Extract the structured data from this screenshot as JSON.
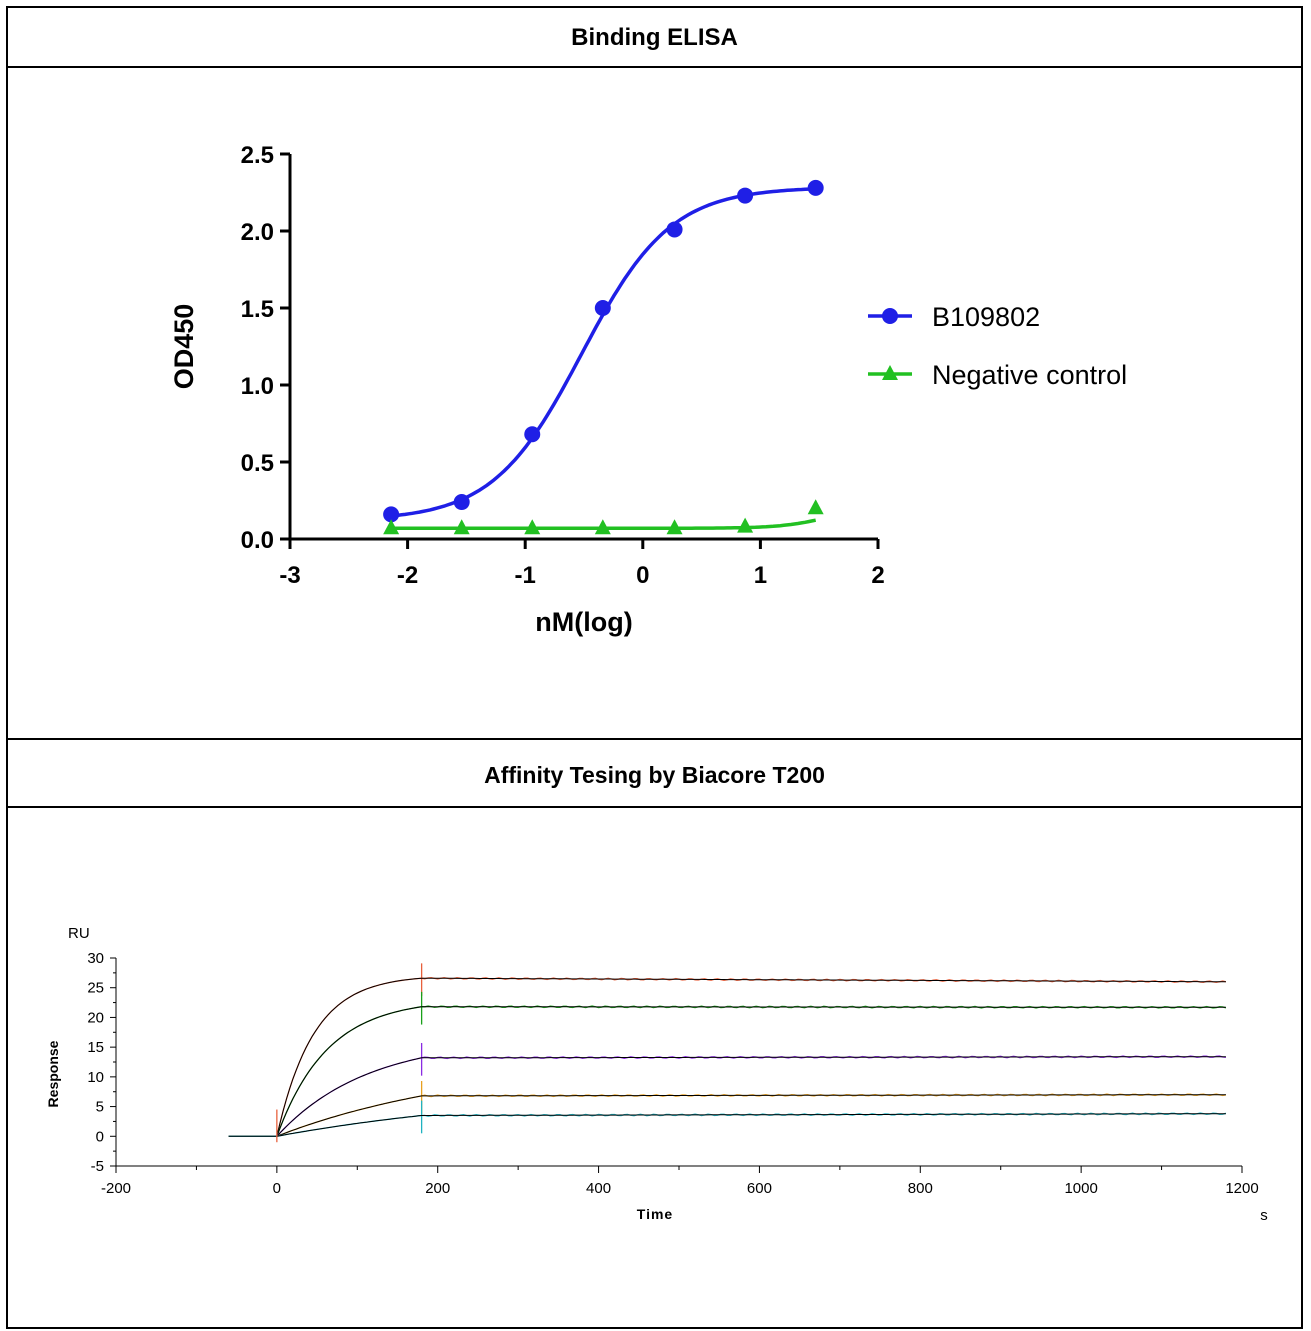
{
  "panels": {
    "top_header": "Binding ELISA",
    "bottom_header": "Affinity Tesing by Biacore T200"
  },
  "chart_data": [
    {
      "type": "scatter",
      "title": "",
      "xlabel": "nM(log)",
      "ylabel": "OD450",
      "xlim": [
        -3,
        2
      ],
      "ylim": [
        0,
        2.5
      ],
      "x_ticks": [
        "-3",
        "-2",
        "-1",
        "0",
        "1",
        "2"
      ],
      "y_ticks": [
        "0.0",
        "0.5",
        "1.0",
        "1.5",
        "2.0",
        "2.5"
      ],
      "legend_position": "right",
      "grid": false,
      "fit": "4-parameter logistic curve",
      "series": [
        {
          "name": "B109802",
          "color": "#1f1fe6",
          "marker": "circle",
          "x": [
            -2.14,
            -1.54,
            -0.94,
            -0.34,
            0.27,
            0.87,
            1.47
          ],
          "y": [
            0.16,
            0.24,
            0.68,
            1.5,
            2.01,
            2.23,
            2.28
          ]
        },
        {
          "name": "Negative control",
          "color": "#22c022",
          "marker": "triangle",
          "x": [
            -2.14,
            -1.54,
            -0.94,
            -0.34,
            0.27,
            0.87,
            1.47
          ],
          "y": [
            0.07,
            0.07,
            0.07,
            0.07,
            0.07,
            0.08,
            0.2
          ]
        }
      ]
    },
    {
      "type": "line",
      "title": "",
      "xlabel": "Time",
      "xunit": "s",
      "ylabel": "Response",
      "yunit": "RU",
      "xlim": [
        -200,
        1200
      ],
      "ylim": [
        -5,
        30
      ],
      "x_ticks": [
        "-200",
        "0",
        "200",
        "400",
        "600",
        "800",
        "1000",
        "1200"
      ],
      "y_ticks": [
        "-5",
        "0",
        "5",
        "10",
        "15",
        "20",
        "25",
        "30"
      ],
      "grid": false,
      "association_end": 180,
      "baseline_start": -60,
      "series": [
        {
          "color": "#e8603c",
          "plateau": 26.6,
          "end": 26.0
        },
        {
          "color": "#1aa01a",
          "plateau": 21.8,
          "end": 21.7
        },
        {
          "color": "#8a2be2",
          "plateau": 13.2,
          "end": 13.4
        },
        {
          "color": "#e8a020",
          "plateau": 6.8,
          "end": 7.0
        },
        {
          "color": "#20b2c0",
          "plateau": 3.5,
          "end": 3.8
        }
      ],
      "fit_color": "#000000"
    }
  ]
}
